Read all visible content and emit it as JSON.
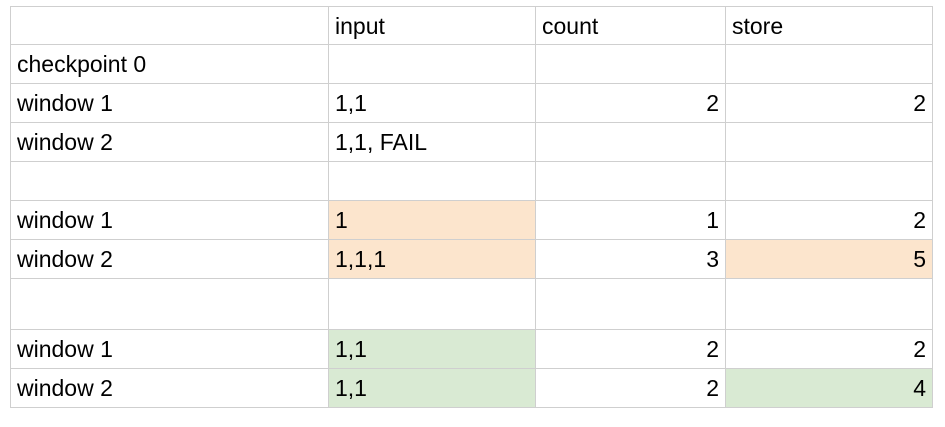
{
  "header": {
    "label": "",
    "input": "input",
    "count": "count",
    "store": "store"
  },
  "rows": [
    {
      "label": "checkpoint 0",
      "input": "",
      "count": "",
      "store": ""
    },
    {
      "label": "window 1",
      "input": "1,1",
      "count": "2",
      "store": "2"
    },
    {
      "label": "window 2",
      "input": "1,1, FAIL",
      "count": "",
      "store": ""
    },
    {
      "label": "",
      "input": "",
      "count": "",
      "store": ""
    },
    {
      "label": "window 1",
      "input": "1",
      "count": "1",
      "store": "2"
    },
    {
      "label": "window 2",
      "input": "1,1,1",
      "count": "3",
      "store": "5"
    },
    {
      "label": "",
      "input": "",
      "count": "",
      "store": ""
    },
    {
      "label": "window 1",
      "input": "1,1",
      "count": "2",
      "store": "2"
    },
    {
      "label": "window 2",
      "input": "1,1",
      "count": "2",
      "store": "4"
    }
  ],
  "colors": {
    "highlight_orange": "#fce5cd",
    "highlight_green": "#d9ead3",
    "grid": "#cfcfcf"
  }
}
